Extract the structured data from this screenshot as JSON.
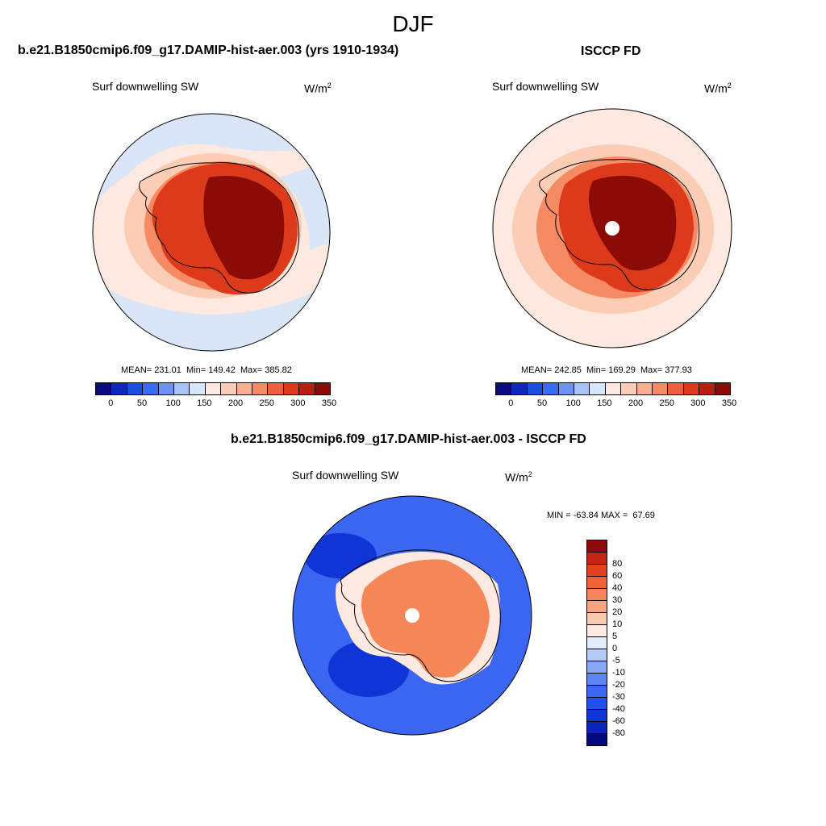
{
  "figure": {
    "season": "DJF",
    "panel_label": "Surf downwelling SW",
    "units_base": "W/m",
    "units_exp": "2"
  },
  "panels": {
    "model": {
      "title": "b.e21.B1850cmip6.f09_g17.DAMIP-hist-aer.003 (yrs 1910-1934)",
      "stats": "MEAN= 231.01  Min= 149.42  Max= 385.82"
    },
    "obs": {
      "title": "ISCCP FD",
      "stats": "MEAN= 242.85  Min= 169.29  Max= 377.93"
    },
    "diff": {
      "title": "b.e21.B1850cmip6.f09_g17.DAMIP-hist-aer.003 - ISCCP FD",
      "stats": "MIN = -63.84 MAX =  67.69"
    }
  },
  "colorbar_abs": {
    "colors": [
      "#0a0b80",
      "#0d2ab8",
      "#1a4fe0",
      "#3a6cf2",
      "#6b92f5",
      "#a6c2f7",
      "#d6e6fb",
      "#fde9df",
      "#fbcdb5",
      "#f8ad8d",
      "#f58a63",
      "#ef5f3b",
      "#dd3a1c",
      "#b71f10",
      "#8b0c06"
    ],
    "ticks": [
      "0",
      "50",
      "100",
      "150",
      "200",
      "250",
      "300",
      "350"
    ]
  },
  "colorbar_diff": {
    "colors": [
      "#050a80",
      "#0a23b8",
      "#0f35d6",
      "#1f4fee",
      "#3a66f2",
      "#5c84f4",
      "#86a6f6",
      "#b4cbf8",
      "#e2ecfb",
      "#fde9df",
      "#fbcab0",
      "#f8a682",
      "#f58658",
      "#f06135",
      "#e0411f",
      "#c32712",
      "#8b0c06"
    ],
    "ticks": [
      "-80",
      "-60",
      "-40",
      "-30",
      "-20",
      "-10",
      "-5",
      "0",
      "5",
      "10",
      "20",
      "30",
      "40",
      "60",
      "80"
    ]
  },
  "map_colors": {
    "ocean_light": "#d8e6f8",
    "pale": "#fde9df",
    "light_orange": "#fbcdb5",
    "orange": "#f58a63",
    "red": "#dd3a1c",
    "dark_red": "#8b0c06",
    "diff_blue": "#3a66f2",
    "diff_dark_blue": "#0f35d6",
    "diff_orange": "#f58658"
  }
}
